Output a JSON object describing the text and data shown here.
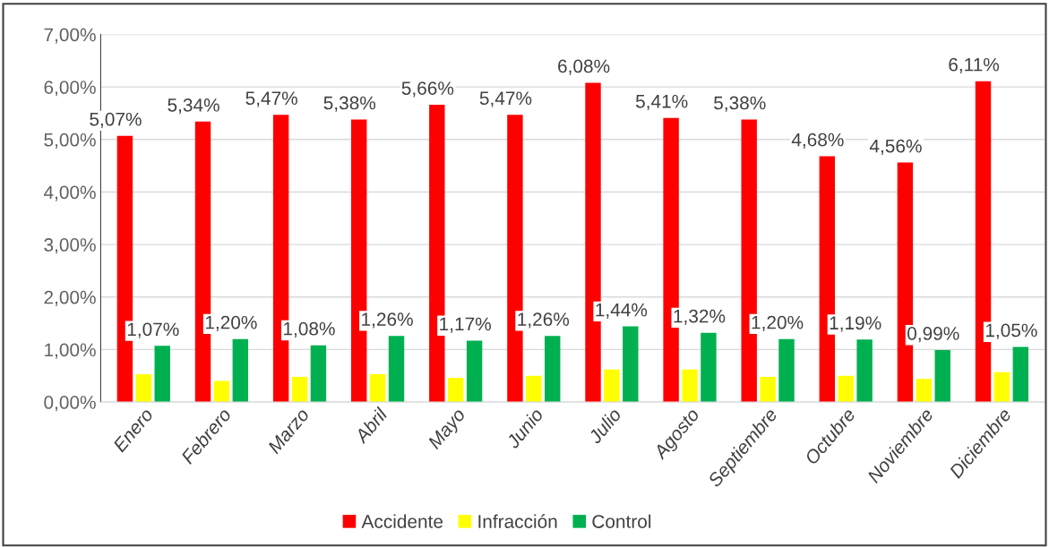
{
  "chart_data": {
    "type": "bar",
    "categories": [
      "Enero",
      "Febrero",
      "Marzo",
      "Abril",
      "Mayo",
      "Junio",
      "Julio",
      "Agosto",
      "Septiembre",
      "Octubre",
      "Noviembre",
      "Diciembre"
    ],
    "series": [
      {
        "name": "Accidente",
        "color": "#ff0000",
        "values": [
          5.07,
          5.34,
          5.47,
          5.38,
          5.66,
          5.47,
          6.08,
          5.41,
          5.38,
          4.68,
          4.56,
          6.11
        ],
        "value_labels": [
          "5,07%",
          "5,34%",
          "5,47%",
          "5,38%",
          "5,66%",
          "5,47%",
          "6,08%",
          "5,41%",
          "5,38%",
          "4,68%",
          "4,56%",
          "6,11%"
        ]
      },
      {
        "name": "Infracción",
        "color": "#ffff00",
        "values": [
          0.53,
          0.4,
          0.48,
          0.53,
          0.46,
          0.5,
          0.62,
          0.62,
          0.48,
          0.5,
          0.44,
          0.57
        ]
      },
      {
        "name": "Control",
        "color": "#00b050",
        "values": [
          1.07,
          1.2,
          1.08,
          1.26,
          1.17,
          1.26,
          1.44,
          1.32,
          1.2,
          1.19,
          0.99,
          1.05
        ],
        "value_labels": [
          "1,07%",
          "1,20%",
          "1,08%",
          "1,26%",
          "1,17%",
          "1,26%",
          "1,44%",
          "1,32%",
          "1,20%",
          "1,19%",
          "0,99%",
          "1,05%"
        ]
      }
    ],
    "ylim": [
      0,
      7
    ],
    "yticks": [
      {
        "value": 0,
        "label": "0,00%"
      },
      {
        "value": 1,
        "label": "1,00%"
      },
      {
        "value": 2,
        "label": "2,00%"
      },
      {
        "value": 3,
        "label": "3,00%"
      },
      {
        "value": 4,
        "label": "4,00%"
      },
      {
        "value": 5,
        "label": "5,00%"
      },
      {
        "value": 6,
        "label": "6,00%"
      },
      {
        "value": 7,
        "label": "7,00%"
      }
    ],
    "grid": "y",
    "legend": "bottom"
  }
}
